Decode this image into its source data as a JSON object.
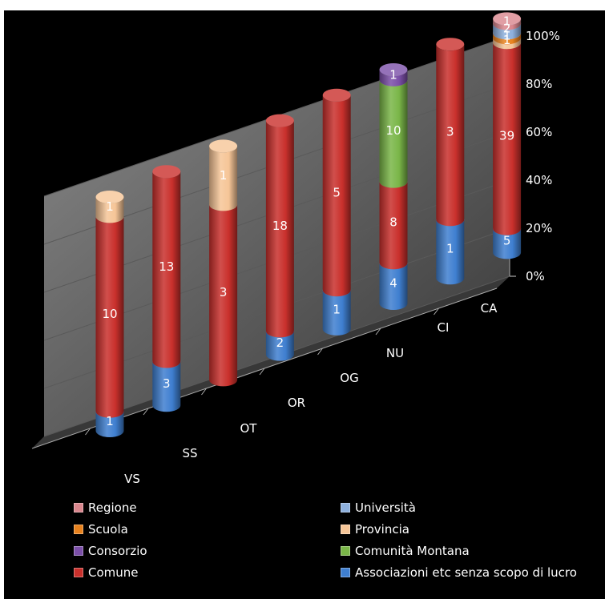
{
  "chart_data": {
    "type": "bar",
    "subtype": "3d-stacked-100-percent-cylinder",
    "title": "",
    "xlabel": "",
    "ylabel": "",
    "ylim": [
      0,
      100
    ],
    "y_tick_labels": [
      "0%",
      "20%",
      "40%",
      "60%",
      "80%",
      "100%"
    ],
    "categories": [
      "VS",
      "SS",
      "OT",
      "OR",
      "OG",
      "NU",
      "CI",
      "CA"
    ],
    "series": [
      {
        "name": "Associazioni etc senza scopo di lucro",
        "color": "#3f7fd0",
        "values": [
          1,
          3,
          0,
          2,
          1,
          4,
          1,
          5
        ]
      },
      {
        "name": "Comune",
        "color": "#c9302c",
        "values": [
          10,
          13,
          3,
          18,
          5,
          8,
          3,
          39
        ]
      },
      {
        "name": "Comunità Montana",
        "color": "#7ab648",
        "values": [
          0,
          0,
          0,
          0,
          0,
          10,
          0,
          0
        ]
      },
      {
        "name": "Consorzio",
        "color": "#7b4fa8",
        "values": [
          0,
          0,
          0,
          0,
          0,
          1,
          0,
          0
        ]
      },
      {
        "name": "Provincia",
        "color": "#f6c597",
        "values": [
          1,
          0,
          1,
          0,
          0,
          0,
          0,
          1
        ]
      },
      {
        "name": "Scuola",
        "color": "#e8821e",
        "values": [
          0,
          0,
          0,
          0,
          0,
          0,
          0,
          1
        ]
      },
      {
        "name": "Università",
        "color": "#8db0dd",
        "values": [
          0,
          0,
          0,
          0,
          0,
          0,
          0,
          2
        ]
      },
      {
        "name": "Regione",
        "color": "#d9868d",
        "values": [
          0,
          0,
          0,
          0,
          0,
          0,
          0,
          1
        ]
      }
    ],
    "legend": {
      "placement": "bottom",
      "order": [
        "Regione",
        "Università",
        "Scuola",
        "Provincia",
        "Consorzio",
        "Comunità Montana",
        "Comune",
        "Associazioni etc senza scopo di lucro"
      ]
    },
    "grid": true,
    "background": "#000000",
    "text_color": "#ffffff"
  }
}
